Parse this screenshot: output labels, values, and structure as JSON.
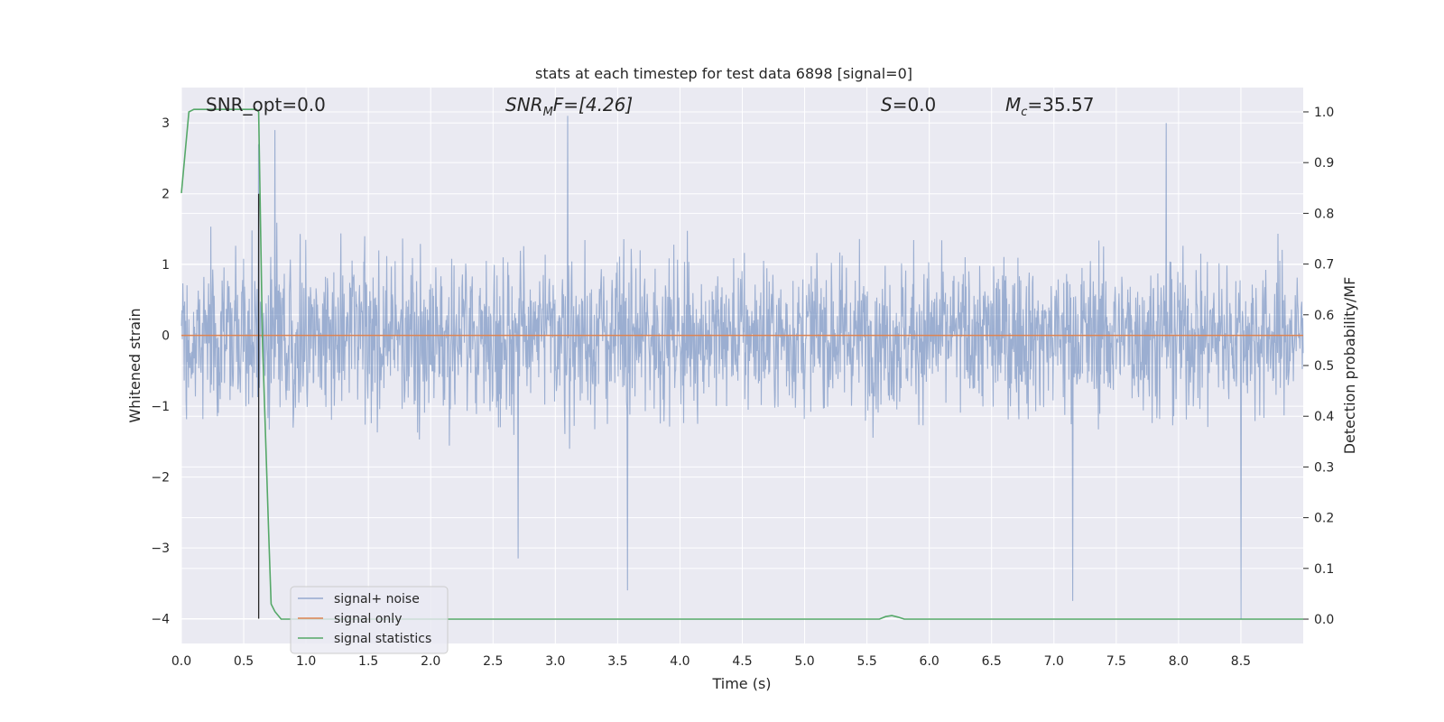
{
  "chart_data": {
    "type": "line",
    "title": "stats at each timestep for test data 6898 [signal=0]",
    "xlabel": "Time (s)",
    "ylabel": "Whitened strain",
    "y2label": "Detection probability/MF",
    "xlim": [
      0,
      9.0
    ],
    "ylim": [
      -4.35,
      3.5
    ],
    "y2lim": [
      -0.048,
      1.048
    ],
    "x_ticks": [
      0.0,
      0.5,
      1.0,
      1.5,
      2.0,
      2.5,
      3.0,
      3.5,
      4.0,
      4.5,
      5.0,
      5.5,
      6.0,
      6.5,
      7.0,
      7.5,
      8.0,
      8.5
    ],
    "x_tick_labels": [
      "0.0",
      "0.5",
      "1.0",
      "1.5",
      "2.0",
      "2.5",
      "3.0",
      "3.5",
      "4.0",
      "4.5",
      "5.0",
      "5.5",
      "6.0",
      "6.5",
      "7.0",
      "7.5",
      "8.0",
      "8.5"
    ],
    "y_ticks": [
      3,
      2,
      1,
      0,
      -1,
      -2,
      -3,
      -4
    ],
    "y_tick_labels": [
      "3",
      "2",
      "1",
      "0",
      "−1",
      "−2",
      "−3",
      "−4"
    ],
    "y2_ticks": [
      1.0,
      0.9,
      0.8,
      0.7,
      0.6,
      0.5,
      0.4,
      0.3,
      0.2,
      0.1,
      0.0
    ],
    "y2_tick_labels": [
      "1.0",
      "0.9",
      "0.8",
      "0.7",
      "0.6",
      "0.5",
      "0.4",
      "0.3",
      "0.2",
      "0.1",
      "0.0"
    ],
    "grid": true,
    "legend_position": "lower-left",
    "colors": {
      "background": "#eaeaf2",
      "grid": "#ffffff",
      "signal_noise": "#4c72b0",
      "signal_only": "#dd8452",
      "signal_statistics": "#55a868",
      "marker_line": "#262626"
    },
    "annotations": {
      "snr_opt": "SNR_opt=0.0",
      "snr_mf_prefix": "SNR",
      "snr_mf_sub": "M",
      "snr_mf_suffix": "F=[4.26]",
      "s_prefix": "S",
      "s_suffix": "=0.0",
      "mc_prefix": "M",
      "mc_sub": "c",
      "mc_suffix": "=35.57"
    },
    "vertical_marker_x": 0.62,
    "series": [
      {
        "name": "signal+ noise",
        "axis": "left",
        "description_range": [
          -4.0,
          3.0
        ],
        "notable_peaks": [
          [
            0.62,
            2.7
          ],
          [
            0.75,
            2.9
          ],
          [
            3.1,
            3.1
          ],
          [
            7.9,
            3.0
          ],
          [
            8.5,
            -4.0
          ],
          [
            3.58,
            -3.6
          ],
          [
            2.7,
            -3.15
          ],
          [
            7.15,
            -3.75
          ]
        ]
      },
      {
        "name": "signal only",
        "axis": "left",
        "x": [
          0.0,
          9.0
        ],
        "y": [
          0.0,
          0.0
        ]
      },
      {
        "name": "signal statistics",
        "axis": "right",
        "x": [
          0.0,
          0.06,
          0.1,
          0.2,
          0.3,
          0.4,
          0.5,
          0.6,
          0.62,
          0.65,
          0.7,
          0.72,
          0.75,
          0.8,
          5.6,
          5.65,
          5.7,
          5.75,
          5.8,
          9.0
        ],
        "y": [
          0.84,
          1.0,
          1.005,
          1.005,
          1.005,
          1.005,
          1.005,
          1.005,
          1.0,
          0.55,
          0.17,
          0.03,
          0.015,
          0.0,
          0.0,
          0.005,
          0.007,
          0.004,
          0.0,
          0.0
        ]
      }
    ]
  }
}
